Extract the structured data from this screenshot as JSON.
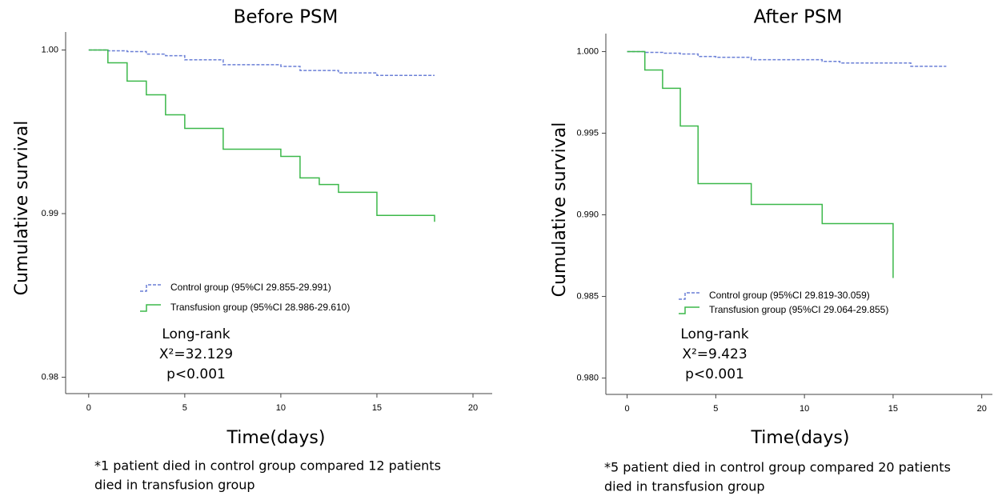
{
  "chart_data": [
    {
      "type": "step",
      "title": "Before PSM",
      "xlabel": "Time(days)",
      "ylabel": "Cumulative survival",
      "x": [
        0,
        1,
        2,
        3,
        4,
        5,
        7,
        10,
        11,
        12,
        13,
        15,
        18
      ],
      "series": [
        {
          "name": "Control group  (95%CI 29.855-29.991)",
          "color": "#6a7fd6",
          "line_style": "dashed",
          "values": [
            1.0,
            0.99995,
            0.9999,
            0.99975,
            0.99965,
            0.9994,
            0.9991,
            0.999,
            0.99875,
            0.99875,
            0.9986,
            0.99845,
            0.99845
          ]
        },
        {
          "name": "Transfusion group (95%CI 28.986-29.610)",
          "color": "#3cb84a",
          "line_style": "solid",
          "values": [
            1.0,
            0.99922,
            0.9981,
            0.99726,
            0.99604,
            0.99521,
            0.99394,
            0.9935,
            0.99218,
            0.99178,
            0.9913,
            0.98989,
            0.9895
          ]
        }
      ],
      "xlim": [
        -1.2,
        21
      ],
      "ylim": [
        0.979,
        1.0011
      ],
      "xticks": [
        0,
        5,
        10,
        15,
        20
      ],
      "yticks": [
        0.98,
        0.99,
        {
          "value": 1,
          "label": "1.00"
        }
      ],
      "annotations": [
        "Long-rank",
        "X²=32.129",
        "p<0.001"
      ],
      "footnote": [
        "*1 patient died in control group compared 12 patients",
        "died in transfusion group"
      ]
    },
    {
      "type": "step",
      "title": "After PSM",
      "xlabel": "Time(days)",
      "ylabel": "Cumulative survival",
      "x": [
        0,
        1,
        2,
        3,
        4,
        5,
        7,
        11,
        12,
        15,
        16,
        18
      ],
      "series": [
        {
          "name": "Control group (95%CI 29.819-30.059)",
          "color": "#6a7fd6",
          "line_style": "dashed",
          "values": [
            1.0,
            0.99995,
            0.9999,
            0.99985,
            0.9997,
            0.99965,
            0.9995,
            0.9994,
            0.9993,
            0.9993,
            0.9991,
            0.9991
          ]
        },
        {
          "name": "Transfusion group (95%CI 29.064-29.855)",
          "color": "#3cb84a",
          "line_style": "solid",
          "values": [
            1.0,
            0.99887,
            0.99775,
            0.99544,
            0.99191,
            0.99191,
            0.99064,
            0.98946,
            0.98946,
            0.98613,
            null,
            null
          ]
        }
      ],
      "xlim": [
        -1.2,
        20.6
      ],
      "ylim": [
        0.979,
        1.0011
      ],
      "xticks": [
        0,
        5,
        10,
        15,
        20
      ],
      "yticks": [
        {
          "value": 0.98,
          "label": "0.980"
        },
        {
          "value": 0.985,
          "label": "0.985"
        },
        {
          "value": 0.99,
          "label": "0.990"
        },
        {
          "value": 0.995,
          "label": "0.995"
        },
        {
          "value": 1,
          "label": "1.000"
        }
      ],
      "annotations": [
        "Long-rank",
        "X²=9.423",
        "p<0.001"
      ],
      "footnote": [
        "*5 patient died in control group compared 20 patients",
        "died in transfusion group"
      ]
    }
  ]
}
